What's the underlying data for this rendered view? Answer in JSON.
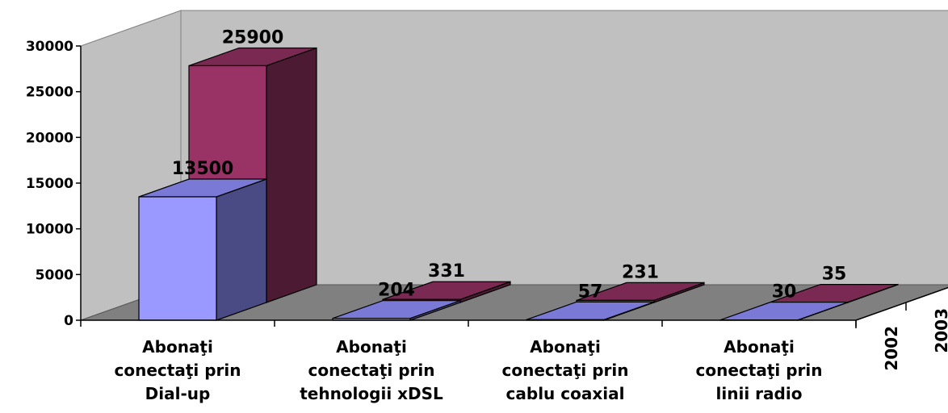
{
  "chart_data": {
    "type": "bar",
    "style": "3d-clustered-column",
    "categories": [
      [
        "Abonaţi",
        "conectaţi prin",
        "Dial-up"
      ],
      [
        "Abonaţi",
        "conectaţi prin",
        "tehnologii xDSL"
      ],
      [
        "Abonaţi",
        "conectaţi prin",
        "cablu coaxial"
      ],
      [
        "Abonaţi",
        "conectaţi prin",
        "linii radio"
      ]
    ],
    "series": [
      {
        "name": "2002",
        "values": [
          13500,
          204,
          57,
          30
        ],
        "color": "#9999ff",
        "side_color": "#4a4a85",
        "top_color": "#7a7ad6"
      },
      {
        "name": "2003",
        "values": [
          25900,
          331,
          231,
          35
        ],
        "color": "#993366",
        "side_color": "#4d1a33",
        "top_color": "#7a2952"
      }
    ],
    "ylim": [
      0,
      30000
    ],
    "yticks": [
      0,
      5000,
      10000,
      15000,
      20000,
      25000,
      30000
    ],
    "grid": false,
    "wall_color": "#c0c0c0",
    "floor_color": "#808080"
  }
}
